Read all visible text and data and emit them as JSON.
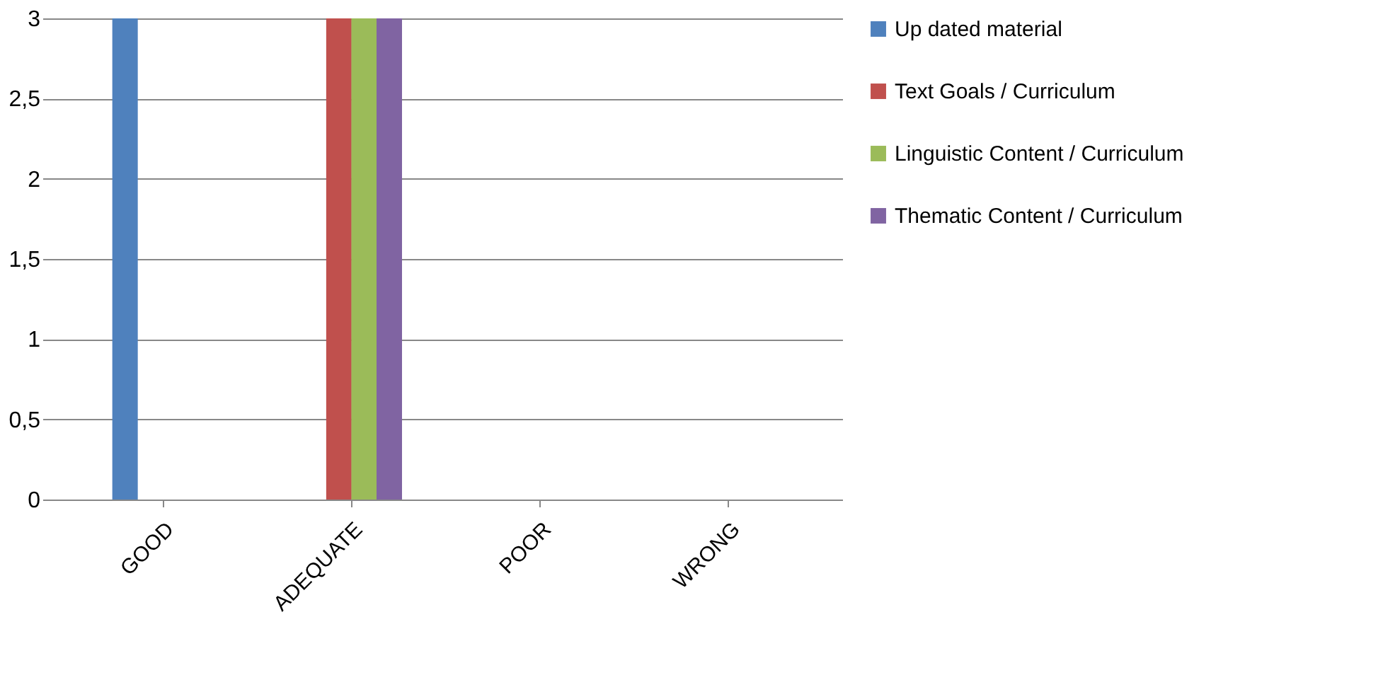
{
  "chart_data": {
    "type": "bar",
    "categories": [
      "GOOD",
      "ADEQUATE",
      "POOR",
      "WRONG"
    ],
    "series": [
      {
        "name": "Up dated material",
        "color": "#4f81bd",
        "values": [
          3,
          0,
          0,
          0
        ]
      },
      {
        "name": "Text Goals / Curriculum",
        "color": "#c0504d",
        "values": [
          0,
          3,
          0,
          0
        ]
      },
      {
        "name": "Linguistic Content / Curriculum",
        "color": "#9bbb59",
        "values": [
          0,
          3,
          0,
          0
        ]
      },
      {
        "name": "Thematic Content / Curriculum",
        "color": "#8064a2",
        "values": [
          0,
          3,
          0,
          0
        ]
      }
    ],
    "ylim": [
      0,
      3
    ],
    "yticks": [
      0,
      {
        "value": 0.5,
        "label": "0,5"
      },
      1,
      {
        "value": 1.5,
        "label": "1,5"
      },
      2,
      {
        "value": 2.5,
        "label": "2,5"
      },
      3
    ],
    "grid": "y",
    "legend": "right"
  }
}
